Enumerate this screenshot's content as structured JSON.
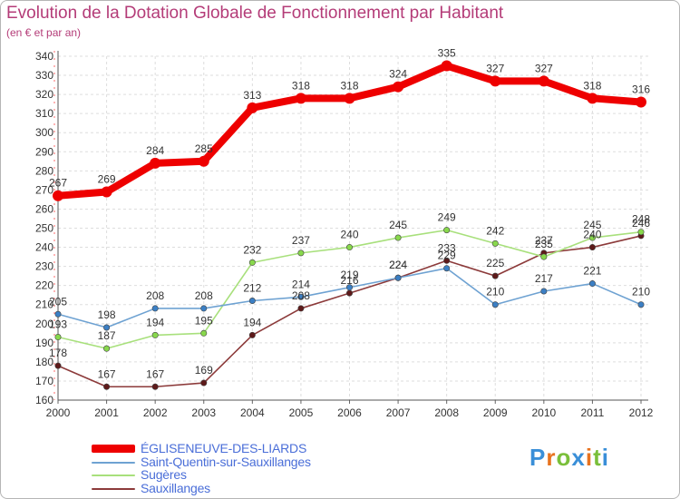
{
  "header": {
    "title": "Evolution de la Dotation Globale de Fonctionnement par Habitant",
    "subtitle": "(en € et par an)"
  },
  "chart_data": {
    "type": "line",
    "title": "Evolution de la Dotation Globale de Fonctionnement par Habitant",
    "subtitle": "(en € et par an)",
    "xlabel": "",
    "ylabel": "",
    "x": [
      "2000",
      "2001",
      "2002",
      "2003",
      "2004",
      "2005",
      "2006",
      "2007",
      "2008",
      "2009",
      "2010",
      "2011",
      "2012"
    ],
    "ylim": [
      160,
      340
    ],
    "yticks": [
      160,
      170,
      180,
      190,
      200,
      210,
      220,
      230,
      240,
      250,
      260,
      270,
      280,
      290,
      300,
      310,
      320,
      330,
      340
    ],
    "grid": true,
    "legend_position": "bottom-left",
    "series": [
      {
        "name": "ÉGLISENEUVE-DES-LIARDS",
        "color": "#ee0000",
        "marker_color": "#ee0000",
        "values": [
          267,
          269,
          284,
          285,
          313,
          318,
          318,
          324,
          335,
          327,
          327,
          318,
          316
        ],
        "labels": [
          "267",
          "269",
          "284",
          "285",
          "313",
          "318",
          "318",
          "324",
          "335",
          "327",
          "327",
          "318",
          "316"
        ]
      },
      {
        "name": "Saint-Quentin-sur-Sauxillanges",
        "color": "#6ea2d2",
        "marker_color": "#3b7fc4",
        "values": [
          205,
          198,
          208,
          208,
          212,
          214,
          219,
          224,
          229,
          210,
          217,
          221,
          210
        ],
        "labels": [
          "205",
          "198",
          "208",
          "208",
          "212",
          "214",
          "219",
          "224",
          "229",
          "210",
          "217",
          "221",
          "210"
        ]
      },
      {
        "name": "Sugères",
        "color": "#a8e07c",
        "marker_color": "#88d84c",
        "values": [
          193,
          187,
          194,
          195,
          232,
          237,
          240,
          245,
          249,
          242,
          235,
          245,
          248
        ],
        "labels": [
          "193",
          "187",
          "194",
          "195",
          "232",
          "237",
          "240",
          "245",
          "249",
          "242",
          "235",
          "245",
          "248"
        ]
      },
      {
        "name": "Sauxillanges",
        "color": "#8c3a3a",
        "marker_color": "#5e1a1a",
        "values": [
          178,
          167,
          167,
          169,
          194,
          208,
          216,
          224,
          233,
          225,
          237,
          240,
          246
        ],
        "labels": [
          "178",
          "167",
          "167",
          "169",
          "194",
          "208",
          "216",
          "224",
          "233",
          "225",
          "237",
          "240",
          "246"
        ]
      }
    ]
  },
  "legend": {
    "items": [
      {
        "label": "ÉGLISENEUVE-DES-LIARDS",
        "color": "#ee0000"
      },
      {
        "label": "Saint-Quentin-sur-Sauxillanges",
        "color": "#6ea2d2"
      },
      {
        "label": "Sugères",
        "color": "#a8e07c"
      },
      {
        "label": "Sauxillanges",
        "color": "#8c3a3a"
      }
    ]
  },
  "logo": {
    "text": "Proxiti",
    "colors": [
      "#3a8fd8",
      "#e8731f",
      "#7abf3a",
      "#3a8fd8",
      "#e8731f",
      "#7abf3a",
      "#3a8fd8"
    ]
  }
}
